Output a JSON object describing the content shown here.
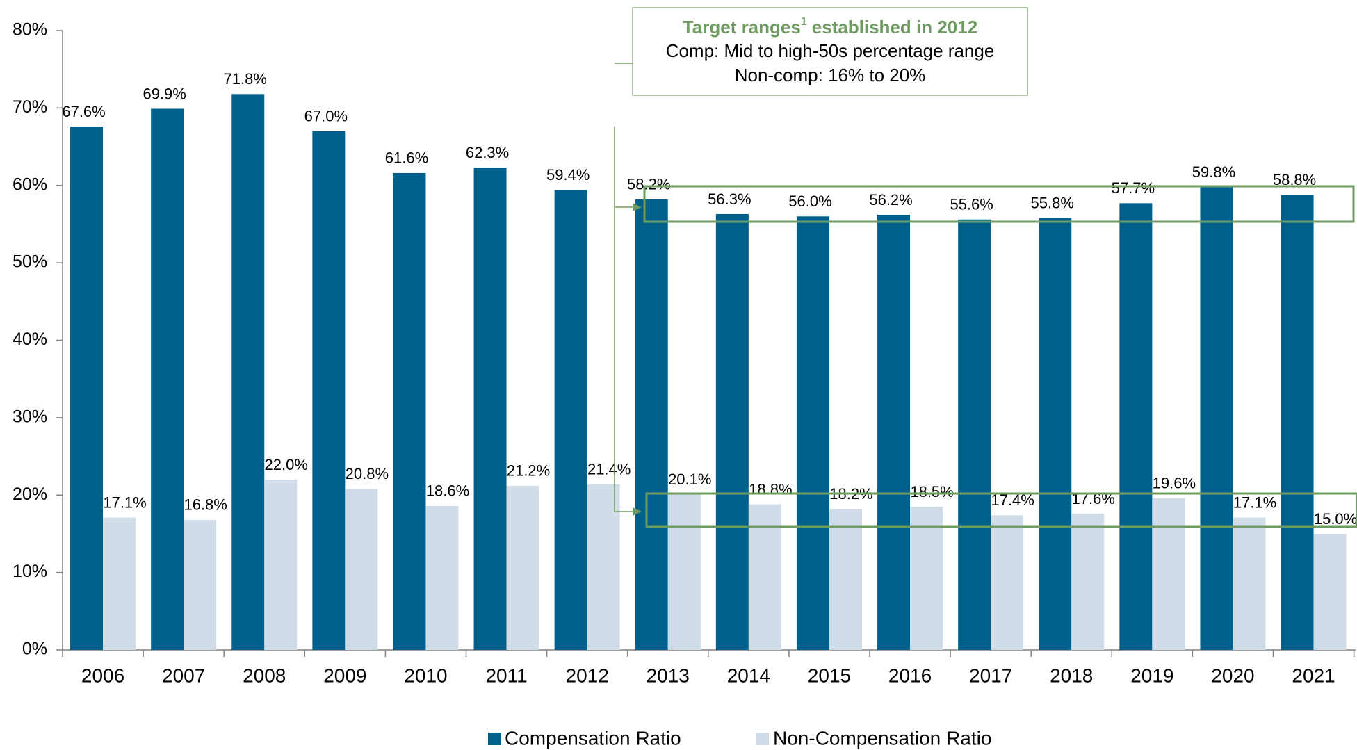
{
  "chart_data": {
    "type": "bar",
    "categories": [
      "2006",
      "2007",
      "2008",
      "2009",
      "2010",
      "2011",
      "2012",
      "2013",
      "2014",
      "2015",
      "2016",
      "2017",
      "2018",
      "2019",
      "2020",
      "2021"
    ],
    "series": [
      {
        "name": "Compensation Ratio",
        "color": "#00608c",
        "values": [
          67.6,
          69.9,
          71.8,
          67.0,
          61.6,
          62.3,
          59.4,
          58.2,
          56.3,
          56.0,
          56.2,
          55.6,
          55.8,
          57.7,
          59.8,
          58.8
        ],
        "value_labels": [
          "67.6%",
          "69.9%",
          "71.8%",
          "67.0%",
          "61.6%",
          "62.3%",
          "59.4%",
          "58.2%",
          "56.3%",
          "56.0%",
          "56.2%",
          "55.6%",
          "55.8%",
          "57.7%",
          "59.8%",
          "58.8%"
        ]
      },
      {
        "name": "Non-Compensation Ratio",
        "color": "#d0dde8",
        "values": [
          17.1,
          16.8,
          22.0,
          20.8,
          18.6,
          21.2,
          21.4,
          20.1,
          18.8,
          18.2,
          18.5,
          17.4,
          17.6,
          19.6,
          17.1,
          15.0
        ],
        "value_labels": [
          "17.1%",
          "16.8%",
          "22.0%",
          "20.8%",
          "18.6%",
          "21.2%",
          "21.4%",
          "20.1%",
          "18.8%",
          "18.2%",
          "18.5%",
          "17.4%",
          "17.6%",
          "19.6%",
          "17.1%",
          "15.0%"
        ]
      }
    ],
    "ylim": [
      0,
      80
    ],
    "yticks": [
      {
        "value": 0,
        "label": "0%"
      },
      {
        "value": 10,
        "label": "10%"
      },
      {
        "value": 20,
        "label": "20%"
      },
      {
        "value": 30,
        "label": "30%"
      },
      {
        "value": 40,
        "label": "40%"
      },
      {
        "value": 50,
        "label": "50%"
      },
      {
        "value": 60,
        "label": "60%"
      },
      {
        "value": 70,
        "label": "70%"
      },
      {
        "value": 80,
        "label": "80%"
      }
    ],
    "legend": "bottom",
    "annotation": {
      "title": "Target ranges",
      "footnote": "1",
      "title_rest": "established in 2012",
      "lines": [
        "Comp: Mid to high-50s percentage range",
        "Non-comp: 16% to 20%"
      ],
      "color": "#6e9b5f"
    }
  }
}
